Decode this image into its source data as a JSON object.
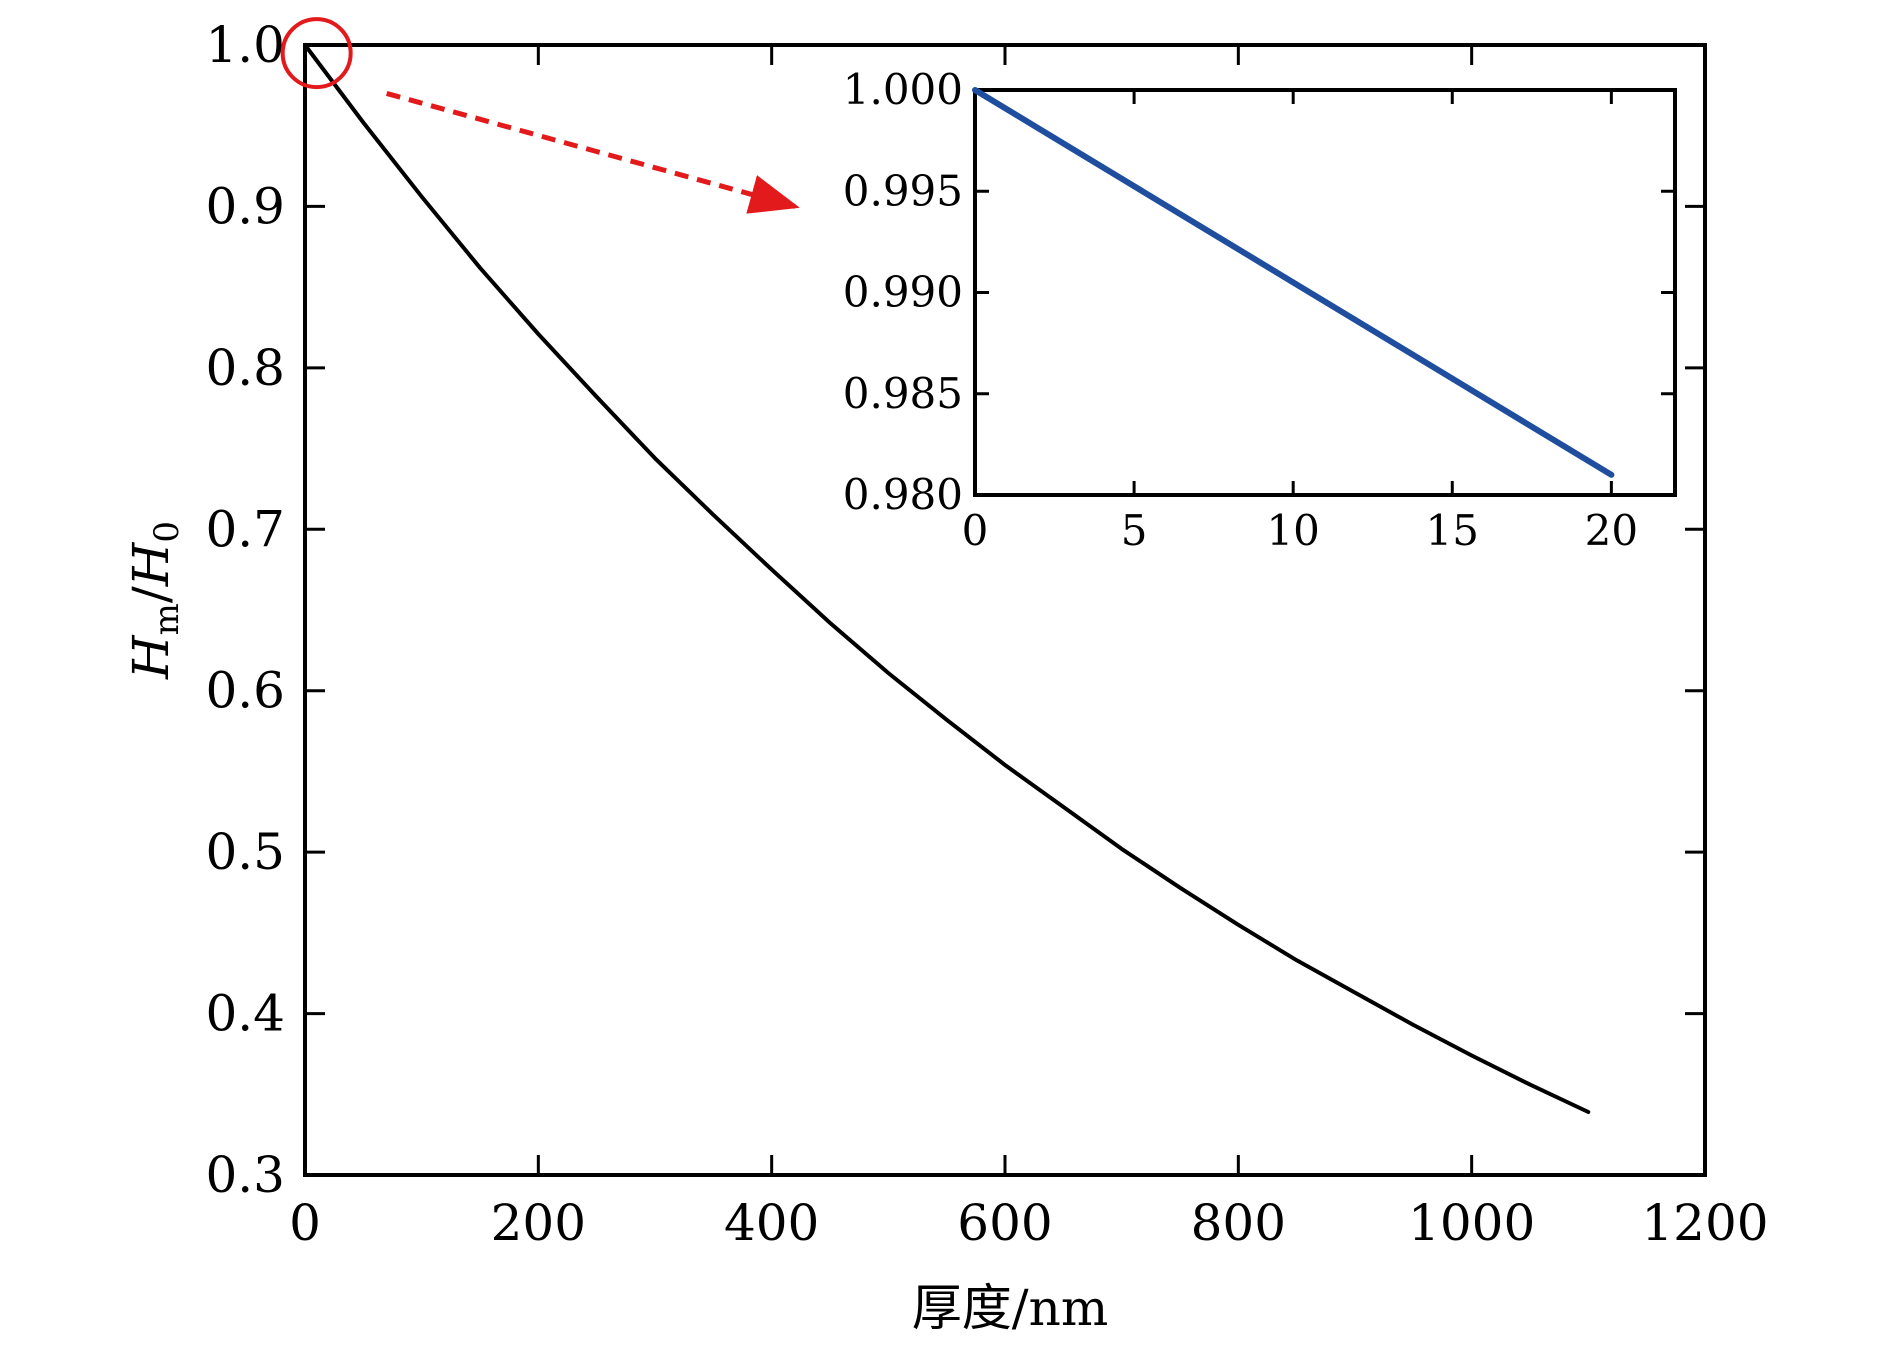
{
  "colors": {
    "main_line": "#000000",
    "inset_line": "#1f4e9e",
    "highlight": "#e31a1c",
    "axes": "#000000"
  },
  "chart_data": [
    {
      "id": "main",
      "type": "line",
      "title": "",
      "xlabel": "厚度/nm",
      "ylabel": {
        "main": "H",
        "sub1": "m",
        "slash": "/",
        "main2": "H",
        "sub2": "0"
      },
      "xlim": [
        0,
        1200
      ],
      "ylim": [
        0.3,
        1.0
      ],
      "xticks": [
        0,
        200,
        400,
        600,
        800,
        1000,
        1200
      ],
      "yticks": [
        0.3,
        0.4,
        0.5,
        0.6,
        0.7,
        0.8,
        0.9,
        1.0
      ],
      "xtick_labels": [
        "0",
        "200",
        "400",
        "600",
        "800",
        "1000",
        "1200"
      ],
      "ytick_labels": [
        "0.3",
        "0.4",
        "0.5",
        "0.6",
        "0.7",
        "0.8",
        "0.9",
        "1.0"
      ],
      "series": [
        {
          "name": "Hm/H0",
          "color": "#000000",
          "x": [
            0,
            50,
            100,
            150,
            200,
            250,
            300,
            350,
            400,
            450,
            500,
            550,
            600,
            650,
            700,
            750,
            800,
            850,
            900,
            950,
            1000,
            1050,
            1100
          ],
          "y": [
            1.0,
            0.952,
            0.906,
            0.862,
            0.821,
            0.782,
            0.744,
            0.709,
            0.675,
            0.642,
            0.611,
            0.582,
            0.554,
            0.528,
            0.502,
            0.478,
            0.455,
            0.433,
            0.413,
            0.393,
            0.374,
            0.356,
            0.339
          ]
        }
      ],
      "annotations": [
        {
          "type": "circle",
          "x": 10,
          "y": 0.995,
          "color": "#e31a1c"
        },
        {
          "type": "dashed-arrow",
          "from": [
            70,
            0.97
          ],
          "to": [
            420,
            0.9
          ],
          "color": "#e31a1c"
        }
      ]
    },
    {
      "id": "inset",
      "type": "line",
      "title": "",
      "xlabel": "",
      "ylabel": "",
      "xlim": [
        0,
        22
      ],
      "ylim": [
        0.98,
        1.0
      ],
      "xticks": [
        0,
        5,
        10,
        15,
        20
      ],
      "yticks": [
        0.98,
        0.985,
        0.99,
        0.995,
        1.0
      ],
      "xtick_labels": [
        "0",
        "5",
        "10",
        "15",
        "20"
      ],
      "ytick_labels": [
        "0.980",
        "0.985",
        "0.990",
        "0.995",
        "1.000"
      ],
      "series": [
        {
          "name": "Hm/H0 (0-20 nm)",
          "color": "#1f4e9e",
          "x": [
            0,
            5,
            10,
            15,
            20
          ],
          "y": [
            1.0,
            0.99525,
            0.9905,
            0.98575,
            0.981
          ]
        }
      ]
    }
  ]
}
